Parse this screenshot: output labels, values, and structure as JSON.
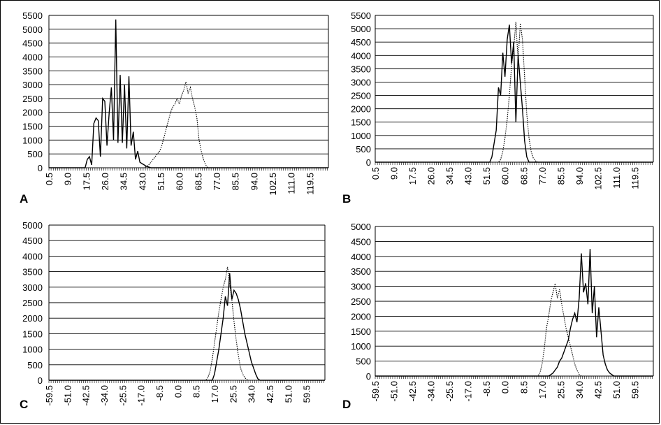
{
  "chart_data": [
    {
      "type": "line",
      "panel_label": "A",
      "ylim": [
        0,
        5500
      ],
      "yticks": [
        0,
        500,
        1000,
        1500,
        2000,
        2500,
        3000,
        3500,
        4000,
        4500,
        5000,
        5500
      ],
      "xlim": [
        0.5,
        128.0
      ],
      "xticks": [
        "0.5",
        "9.0",
        "17.5",
        "26.0",
        "34.5",
        "43.0",
        "51.5",
        "60.0",
        "68.5",
        "77.0",
        "85.5",
        "94.0",
        "102.5",
        "111.0",
        "119.5"
      ],
      "grid": true,
      "series": [
        {
          "style": "solid",
          "x": [
            0.5,
            17,
            18,
            19,
            20,
            21,
            22,
            23,
            24,
            25,
            26,
            27,
            28,
            29,
            30,
            31,
            32,
            33,
            34,
            35,
            36,
            37,
            38,
            39,
            40,
            41,
            42,
            43,
            44,
            45,
            46,
            47,
            48,
            49,
            128
          ],
          "y": [
            0,
            0,
            300,
            400,
            100,
            1600,
            1800,
            1700,
            400,
            2500,
            2400,
            800,
            2000,
            2900,
            1000,
            5350,
            900,
            3350,
            900,
            3000,
            700,
            3300,
            800,
            1300,
            300,
            600,
            200,
            150,
            100,
            50,
            30,
            0,
            0,
            0,
            0
          ]
        },
        {
          "style": "dotted",
          "x": [
            0.5,
            44,
            45,
            46,
            47,
            48,
            49,
            50,
            51,
            52,
            53,
            54,
            55,
            56,
            57,
            58,
            59,
            60,
            61,
            62,
            63,
            64,
            65,
            66,
            67,
            68,
            69,
            70,
            71,
            72,
            73,
            128
          ],
          "y": [
            0,
            0,
            50,
            100,
            200,
            300,
            400,
            500,
            600,
            800,
            1100,
            1400,
            1700,
            2000,
            2200,
            2300,
            2500,
            2300,
            2600,
            2800,
            3100,
            2700,
            2900,
            2500,
            2200,
            1800,
            1000,
            600,
            300,
            100,
            0,
            0
          ]
        }
      ]
    },
    {
      "type": "line",
      "panel_label": "B",
      "ylim": [
        0,
        5500
      ],
      "yticks": [
        0,
        500,
        1000,
        1500,
        2000,
        2500,
        3000,
        3500,
        4000,
        4500,
        5000,
        5500
      ],
      "xlim": [
        0.5,
        128.0
      ],
      "xticks": [
        "0.5",
        "9.0",
        "17.5",
        "26.0",
        "34.5",
        "43.0",
        "51.5",
        "60.0",
        "68.5",
        "77.0",
        "85.5",
        "94.0",
        "102.5",
        "111.0",
        "119.5"
      ],
      "grid": true,
      "series": [
        {
          "style": "solid",
          "x": [
            0.5,
            53,
            54,
            55,
            56,
            57,
            58,
            59,
            60,
            61,
            62,
            63,
            64,
            65,
            66,
            67,
            68,
            69,
            70,
            71,
            128
          ],
          "y": [
            0,
            0,
            200,
            700,
            1200,
            2800,
            2500,
            4100,
            3200,
            4600,
            5150,
            3700,
            4500,
            1500,
            4000,
            3000,
            2000,
            800,
            200,
            0,
            0
          ]
        },
        {
          "style": "dotted",
          "x": [
            0.5,
            57,
            58,
            59,
            60,
            61,
            62,
            63,
            64,
            65,
            66,
            67,
            68,
            69,
            70,
            71,
            72,
            73,
            74,
            75,
            128
          ],
          "y": [
            0,
            0,
            100,
            400,
            900,
            1600,
            2500,
            3600,
            4300,
            5250,
            3800,
            5200,
            4600,
            3200,
            1800,
            900,
            400,
            150,
            50,
            0,
            0
          ]
        }
      ]
    },
    {
      "type": "line",
      "panel_label": "C",
      "ylim": [
        0,
        5000
      ],
      "yticks": [
        0,
        500,
        1000,
        1500,
        2000,
        2500,
        3000,
        3500,
        4000,
        4500,
        5000
      ],
      "xlim": [
        -59.5,
        68.0
      ],
      "xticks": [
        "-59.5",
        "-51.0",
        "-42.5",
        "-34.0",
        "-25.5",
        "-17.0",
        "-8.5",
        "0.0",
        "8.5",
        "17.0",
        "25.5",
        "34.0",
        "42.5",
        "51.0",
        "59.5"
      ],
      "grid": true,
      "series": [
        {
          "style": "solid",
          "x": [
            -59.5,
            16,
            17,
            18,
            19,
            20,
            21,
            22,
            23,
            24,
            25,
            26,
            27,
            28,
            29,
            30,
            31,
            32,
            33,
            34,
            35,
            36,
            37,
            38,
            68
          ],
          "y": [
            0,
            0,
            200,
            600,
            1000,
            1500,
            2000,
            2700,
            2400,
            3450,
            2600,
            2900,
            2800,
            2600,
            2300,
            1900,
            1500,
            1200,
            900,
            600,
            400,
            200,
            50,
            0,
            0
          ]
        },
        {
          "style": "dotted",
          "x": [
            -59.5,
            13,
            14,
            15,
            16,
            17,
            18,
            19,
            20,
            21,
            22,
            23,
            24,
            25,
            26,
            27,
            28,
            29,
            30,
            31,
            32,
            33,
            68
          ],
          "y": [
            0,
            0,
            100,
            300,
            700,
            1200,
            1700,
            2200,
            2600,
            3000,
            3250,
            3650,
            3100,
            2600,
            1900,
            1300,
            800,
            400,
            200,
            80,
            20,
            0,
            0
          ]
        }
      ]
    },
    {
      "type": "line",
      "panel_label": "D",
      "ylim": [
        0,
        5000
      ],
      "yticks": [
        0,
        500,
        1000,
        1500,
        2000,
        2500,
        3000,
        3500,
        4000,
        4500,
        5000
      ],
      "xlim": [
        -59.5,
        68.0
      ],
      "xticks": [
        "-59.5",
        "-51.0",
        "-42.5",
        "-34.0",
        "-25.5",
        "-17.0",
        "-8.5",
        "0.0",
        "8.5",
        "17.0",
        "25.5",
        "34.0",
        "42.5",
        "51.0",
        "59.5"
      ],
      "grid": true,
      "series": [
        {
          "style": "solid",
          "x": [
            -59.5,
            20,
            21,
            22,
            23,
            24,
            25,
            26,
            27,
            28,
            29,
            30,
            31,
            32,
            33,
            34,
            35,
            36,
            37,
            38,
            39,
            40,
            41,
            42,
            43,
            44,
            45,
            46,
            47,
            48,
            49,
            50,
            68
          ],
          "y": [
            0,
            0,
            50,
            100,
            200,
            300,
            500,
            600,
            800,
            1000,
            1200,
            1600,
            1900,
            2100,
            1800,
            2600,
            4100,
            2800,
            3100,
            2400,
            4250,
            2100,
            3000,
            1300,
            2300,
            1500,
            700,
            400,
            200,
            100,
            50,
            0,
            0
          ]
        },
        {
          "style": "dotted",
          "x": [
            -59.5,
            15,
            16,
            17,
            18,
            19,
            20,
            21,
            22,
            23,
            24,
            25,
            26,
            27,
            28,
            29,
            30,
            31,
            32,
            33,
            34,
            35,
            68
          ],
          "y": [
            0,
            0,
            100,
            400,
            900,
            1600,
            2000,
            2500,
            2800,
            3100,
            2600,
            2900,
            2400,
            2000,
            1600,
            1300,
            1000,
            700,
            400,
            200,
            50,
            0,
            0
          ]
        }
      ]
    }
  ]
}
